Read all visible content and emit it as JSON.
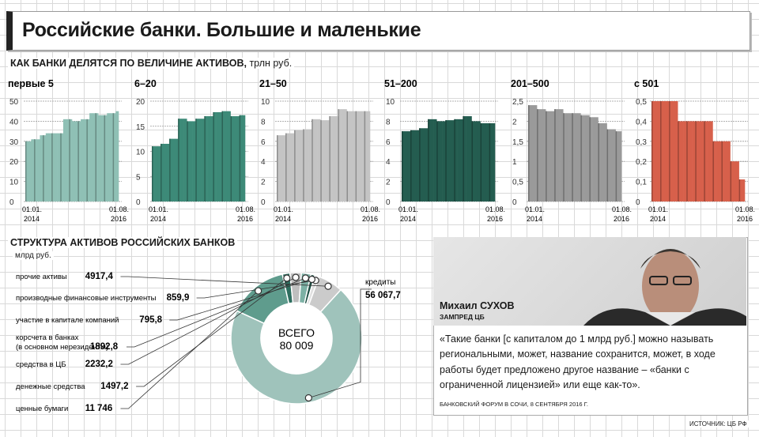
{
  "title": "Российские банки. Большие и маленькие",
  "section1": {
    "title": "КАК БАНКИ ДЕЛЯТСЯ ПО ВЕЛИЧИНЕ АКТИВОВ,",
    "unit": "трлн руб."
  },
  "section2": {
    "title": "СТРУКТУРА АКТИВОВ РОССИЙСКИХ БАНКОВ",
    "unit": "млрд руб."
  },
  "chart_data": [
    {
      "type": "bar",
      "title": "первые 5",
      "categories": [
        "01.01.2014",
        "",
        "",
        "",
        "",
        "",
        "",
        "",
        "",
        "",
        "",
        "",
        "",
        "",
        "",
        "",
        "",
        "",
        "",
        "",
        "",
        "",
        "",
        "",
        "",
        "",
        "",
        "",
        "",
        "",
        "",
        "01.08.2016"
      ],
      "x_start": "01.01. 2014",
      "x_end": "01.08. 2016",
      "ylim": [
        0,
        50
      ],
      "yticks": [
        0,
        10,
        20,
        30,
        40,
        50
      ],
      "color": "#8fc0b5",
      "values": [
        30,
        30,
        31,
        31,
        31,
        33,
        33,
        34,
        34,
        34,
        34,
        34,
        34,
        41,
        41,
        41,
        40,
        40,
        40,
        41,
        41,
        41,
        44,
        44,
        44,
        43,
        43,
        43,
        44,
        44,
        44,
        45
      ]
    },
    {
      "type": "bar",
      "title": "6–20",
      "x_start": "01.01. 2014",
      "x_end": "01.08. 2016",
      "ylim": [
        0,
        20
      ],
      "yticks": [
        0,
        5,
        10,
        15,
        20
      ],
      "color": "#3d8a78",
      "values": [
        11,
        11,
        11,
        11.5,
        11.5,
        11.5,
        12.5,
        12.5,
        12.5,
        16.5,
        16.5,
        16.5,
        16,
        16,
        16,
        16.5,
        16.5,
        16.5,
        17,
        17,
        17,
        17.8,
        17.8,
        17.8,
        18,
        18,
        18,
        17,
        17,
        17,
        17.2,
        17.2
      ]
    },
    {
      "type": "bar",
      "title": "21–50",
      "x_start": "01.01. 2014",
      "x_end": "01.08. 2016",
      "ylim": [
        0,
        10
      ],
      "yticks": [
        0,
        2,
        4,
        6,
        8,
        10
      ],
      "color": "#c4c4c4",
      "values": [
        6.6,
        6.6,
        6.6,
        6.8,
        6.8,
        6.8,
        7.1,
        7.1,
        7.1,
        7.2,
        7.2,
        7.2,
        8.2,
        8.2,
        8.2,
        8.1,
        8.1,
        8.1,
        8.5,
        8.5,
        8.5,
        9.2,
        9.2,
        9.2,
        9,
        9,
        9,
        9,
        9,
        9,
        9,
        9
      ]
    },
    {
      "type": "bar",
      "title": "51–200",
      "x_start": "01.01. 2014",
      "x_end": "01.08. 2016",
      "ylim": [
        0,
        10
      ],
      "yticks": [
        0,
        2,
        4,
        6,
        8,
        10
      ],
      "color": "#245d50",
      "values": [
        7,
        7,
        7,
        7.1,
        7.1,
        7.1,
        7.3,
        7.3,
        7.3,
        8.2,
        8.2,
        8.2,
        8,
        8,
        8,
        8.1,
        8.1,
        8.1,
        8.2,
        8.2,
        8.2,
        8.5,
        8.5,
        8.5,
        8,
        8,
        8,
        7.8,
        7.8,
        7.8,
        7.8,
        7.8
      ]
    },
    {
      "type": "bar",
      "title": "201–500",
      "x_start": "01.01. 2014",
      "x_end": "01.08. 2016",
      "ylim": [
        0,
        2.5
      ],
      "yticks": [
        0,
        0.5,
        1,
        1.5,
        2,
        2.5
      ],
      "ytick_labels": [
        "0",
        "0,5",
        "1",
        "1,5",
        "2",
        "2,5"
      ],
      "color": "#9a9a9a",
      "values": [
        2.4,
        2.4,
        2.4,
        2.3,
        2.3,
        2.3,
        2.25,
        2.25,
        2.25,
        2.3,
        2.3,
        2.3,
        2.2,
        2.2,
        2.2,
        2.2,
        2.2,
        2.2,
        2.15,
        2.15,
        2.15,
        2.1,
        2.1,
        2.1,
        1.95,
        1.95,
        1.95,
        1.8,
        1.8,
        1.8,
        1.75,
        1.75
      ]
    },
    {
      "type": "bar",
      "title": "с 501",
      "x_start": "01.01. 2014",
      "x_end": "01.08. 2016",
      "ylim": [
        0,
        0.5
      ],
      "yticks": [
        0,
        0.1,
        0.2,
        0.3,
        0.4,
        0.5
      ],
      "ytick_labels": [
        "0",
        "0,1",
        "0,2",
        "0,3",
        "0,4",
        "0,5"
      ],
      "color": "#d7604b",
      "values": [
        0.5,
        0.5,
        0.5,
        0.5,
        0.5,
        0.5,
        0.5,
        0.5,
        0.5,
        0.4,
        0.4,
        0.4,
        0.4,
        0.4,
        0.4,
        0.4,
        0.4,
        0.4,
        0.4,
        0.4,
        0.4,
        0.3,
        0.3,
        0.3,
        0.3,
        0.3,
        0.3,
        0.2,
        0.2,
        0.2,
        0.11,
        0.11
      ]
    },
    {
      "type": "pie",
      "title": "СТРУКТУРА АКТИВОВ РОССИЙСКИХ БАНКОВ",
      "unit": "млрд руб.",
      "total_label": "ВСЕГО",
      "total": "80 009",
      "slices": [
        {
          "label": "кредиты",
          "value": "56 067,7",
          "num": 56067.7,
          "color": "#9fc3bb"
        },
        {
          "label": "ценные бумаги",
          "value": "11 746",
          "num": 11746,
          "color": "#5f9c8d"
        },
        {
          "label": "денежные средства",
          "value": "1497,2",
          "num": 1497.2,
          "color": "#2e6e5f"
        },
        {
          "label": "средства в ЦБ",
          "value": "2232,2",
          "num": 2232.2,
          "color": "#bfbfbf"
        },
        {
          "label": "корсчета в банках (в основном нерезиденты)",
          "value": "1892,8",
          "num": 1892.8,
          "color": "#7db1a5"
        },
        {
          "label": "участие в капитале компаний",
          "value": "795,8",
          "num": 795.8,
          "color": "#1e4f44"
        },
        {
          "label": "производные финансовые инструменты",
          "value": "859,9",
          "num": 859.9,
          "color": "#e0e0e0"
        },
        {
          "label": "прочие активы",
          "value": "4917,4",
          "num": 4917.4,
          "color": "#cbcbcb"
        }
      ]
    }
  ],
  "speaker": {
    "name": "Михаил СУХОВ",
    "role": "ЗАМПРЕД ЦБ"
  },
  "quote": "«Такие банки [с капиталом до 1 млрд руб.] можно называть региональными, может, название сохранится, может, в ходе работы будет предложено другое название – «банки с ограниченной лицензией» или еще как-то».",
  "quote_source": "БАНКОВСКИЙ ФОРУМ В СОЧИ, 8 СЕНТЯБРЯ 2016 Г.",
  "source": "ИСТОЧНИК: ЦБ РФ"
}
